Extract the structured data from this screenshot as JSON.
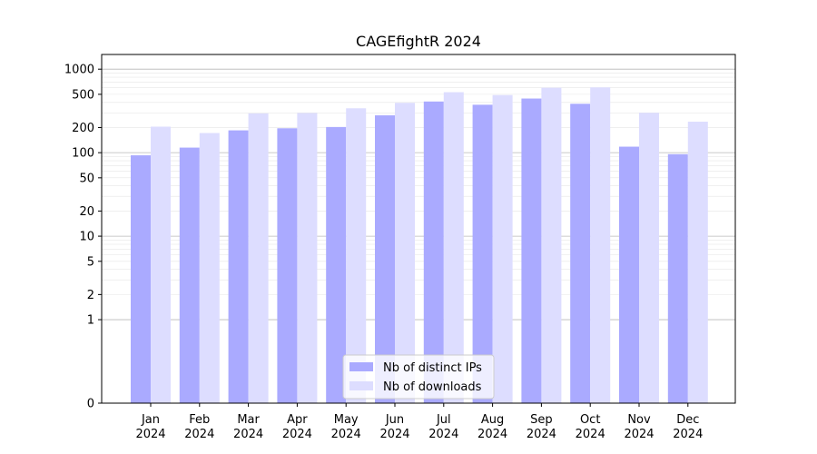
{
  "chart_data": {
    "type": "bar",
    "title": "CAGEfightR 2024",
    "xlabel": "",
    "ylabel": "",
    "yscale": "symlog",
    "ylim": [
      0,
      1500
    ],
    "yticks": [
      0,
      1,
      2,
      5,
      10,
      20,
      50,
      100,
      200,
      500,
      1000
    ],
    "categories": [
      [
        "Jan",
        "2024"
      ],
      [
        "Feb",
        "2024"
      ],
      [
        "Mar",
        "2024"
      ],
      [
        "Apr",
        "2024"
      ],
      [
        "May",
        "2024"
      ],
      [
        "Jun",
        "2024"
      ],
      [
        "Jul",
        "2024"
      ],
      [
        "Aug",
        "2024"
      ],
      [
        "Sep",
        "2024"
      ],
      [
        "Oct",
        "2024"
      ],
      [
        "Nov",
        "2024"
      ],
      [
        "Dec",
        "2024"
      ]
    ],
    "series": [
      {
        "name": "Nb of distinct IPs",
        "color": "#aaaaff",
        "values": [
          93,
          115,
          185,
          196,
          203,
          280,
          410,
          375,
          445,
          385,
          118,
          96
        ]
      },
      {
        "name": "Nb of downloads",
        "color": "#ddddff",
        "values": [
          205,
          172,
          295,
          298,
          340,
          395,
          530,
          490,
          600,
          605,
          300,
          235
        ]
      }
    ],
    "grid": true,
    "legend": "bottom-center"
  }
}
